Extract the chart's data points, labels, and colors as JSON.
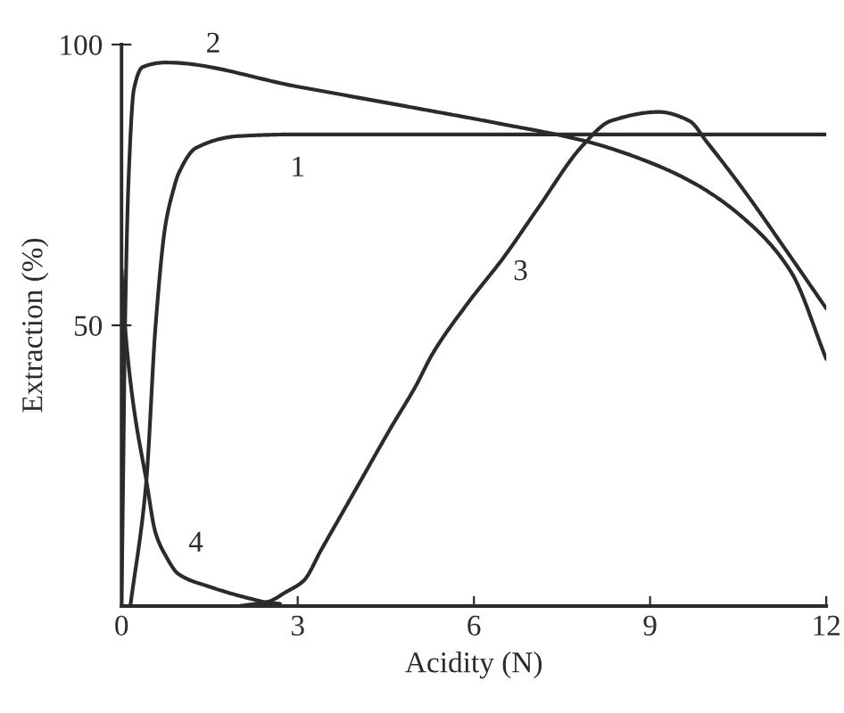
{
  "chart_data": {
    "type": "line",
    "xlabel": "Acidity (N)",
    "ylabel": "Extraction (%)",
    "xlim": [
      0,
      12
    ],
    "ylim": [
      0,
      100
    ],
    "xticks": [
      0,
      3,
      6,
      9,
      12
    ],
    "yticks": [
      50,
      100
    ],
    "series": [
      {
        "name": "1",
        "color": "#2b2b2b",
        "x": [
          0.15,
          0.42,
          0.58,
          0.75,
          0.88,
          0.97,
          1.27,
          2.0,
          3.0,
          12
        ],
        "values": [
          0,
          22,
          50,
          68,
          74,
          77,
          81.6,
          83.7,
          84,
          84
        ]
      },
      {
        "name": "2",
        "color": "#2b2b2b",
        "x": [
          0,
          0.03,
          0.06,
          0.12,
          0.21,
          0.36,
          0.76,
          3.0,
          4.9,
          6.4,
          7.9,
          8.9,
          9.75,
          10.6,
          11.4,
          12
        ],
        "values": [
          0,
          25,
          50,
          76,
          92,
          96,
          96.8,
          92.5,
          88.9,
          86,
          82.8,
          79.4,
          75.3,
          69,
          59.5,
          44
        ]
      },
      {
        "name": "3",
        "color": "#2b2b2b",
        "x": [
          2.0,
          2.5,
          2.8,
          3.1,
          3.4,
          4.0,
          4.6,
          5.0,
          5.3,
          5.9,
          6.5,
          7.1,
          7.85,
          8.33,
          9.15,
          9.67,
          9.97,
          10.6,
          11.3,
          12
        ],
        "values": [
          0,
          0.8,
          2.5,
          4.5,
          10,
          21,
          32,
          39,
          45,
          54,
          62,
          71,
          82,
          86.4,
          88,
          86.4,
          82.6,
          74,
          63.6,
          53
        ]
      },
      {
        "name": "4",
        "color": "#2b2b2b",
        "x": [
          0,
          0.05,
          0.2,
          0.42,
          0.58,
          0.75,
          0.97,
          1.48,
          2.2,
          2.5,
          2.7
        ],
        "values": [
          60,
          51,
          36,
          22.5,
          13,
          9,
          5.7,
          3.5,
          1.3,
          0.6,
          0.4
        ]
      }
    ]
  }
}
